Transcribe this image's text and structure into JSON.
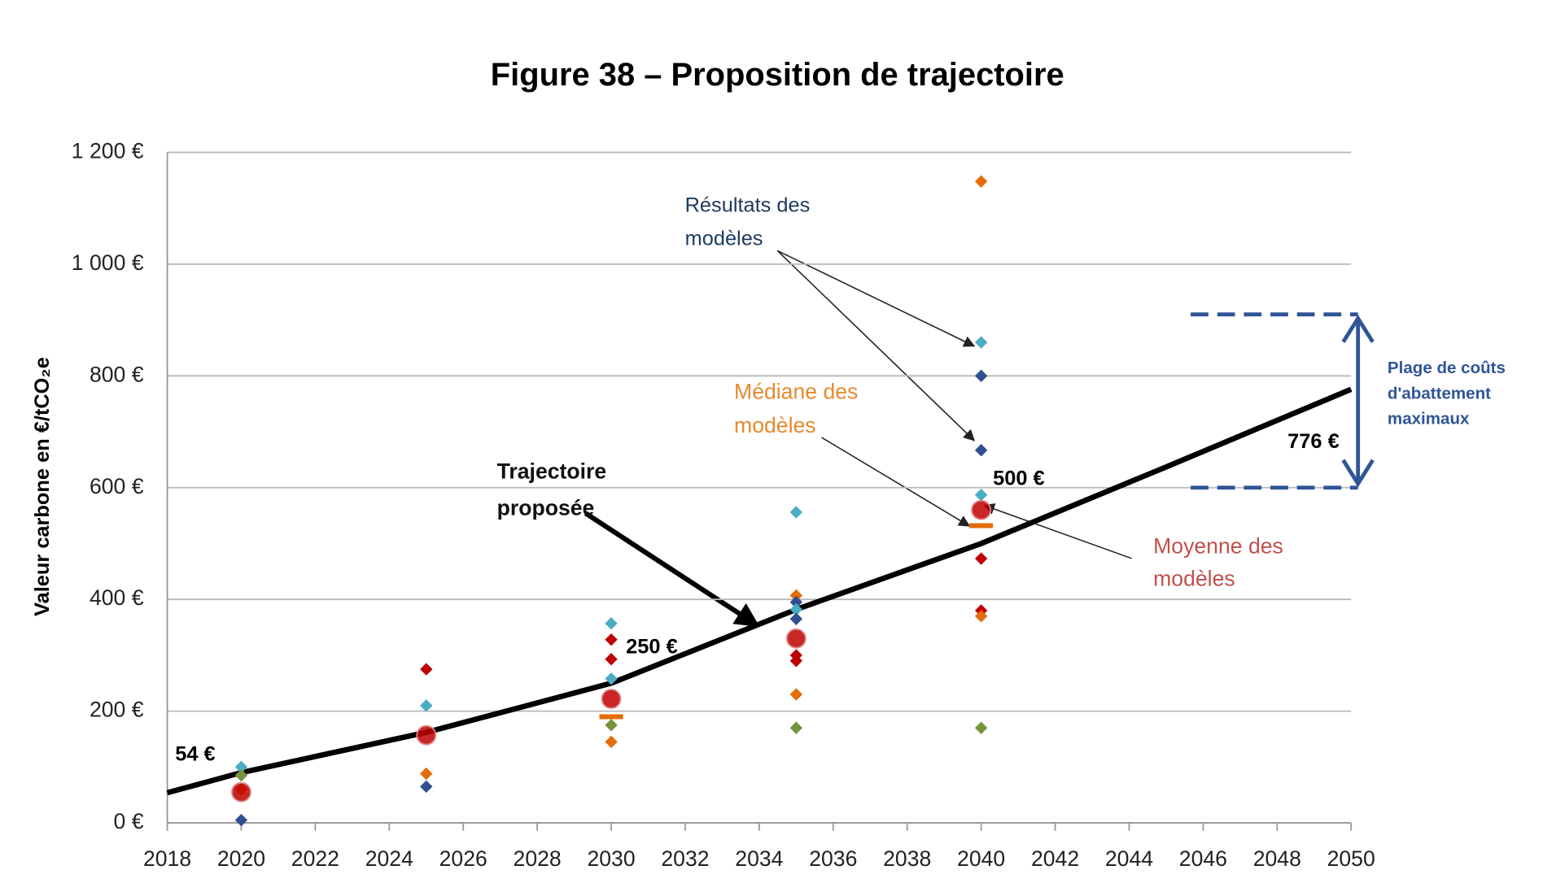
{
  "chart_data": {
    "type": "line",
    "title": "Figure 38 – Proposition de trajectoire",
    "y_label": "Valeur carbone en €/tCO₂e",
    "xlim": [
      2018,
      2050
    ],
    "xticks": [
      2018,
      2020,
      2022,
      2024,
      2026,
      2028,
      2030,
      2032,
      2034,
      2036,
      2038,
      2040,
      2042,
      2044,
      2046,
      2048,
      2050
    ],
    "ylim": [
      0,
      1200
    ],
    "yticks": [
      {
        "value": 0,
        "label": "0 €"
      },
      {
        "value": 200,
        "label": "200 €"
      },
      {
        "value": 400,
        "label": "400 €"
      },
      {
        "value": 600,
        "label": "600 €"
      },
      {
        "value": 800,
        "label": "800 €"
      },
      {
        "value": 1000,
        "label": "1 000 €"
      },
      {
        "value": 1200,
        "label": "1 200 €"
      }
    ],
    "grid": true,
    "series": [
      {
        "name": [
          "Trajectoire",
          "proposée"
        ],
        "type": "line",
        "color": "#000000",
        "x": [
          2018,
          2020,
          2025,
          2030,
          2035,
          2040,
          2045,
          2050
        ],
        "values": [
          54,
          90,
          162,
          250,
          382,
          500,
          637,
          776
        ],
        "value_labels": [
          "54 €",
          null,
          null,
          "250 €",
          null,
          "500 €",
          null,
          "776 €"
        ]
      },
      {
        "name": [
          "Résultats des",
          "modèles"
        ],
        "type": "scatter",
        "x": [
          2020,
          2020,
          2020,
          2020,
          2025,
          2025,
          2025,
          2025,
          2030,
          2030,
          2030,
          2030,
          2030,
          2030,
          2035,
          2035,
          2035,
          2035,
          2035,
          2035,
          2035,
          2035,
          2035,
          2040,
          2040,
          2040,
          2040,
          2040,
          2040,
          2040,
          2040,
          2040
        ],
        "values": [
          5,
          100,
          85,
          60,
          275,
          210,
          88,
          65,
          357,
          328,
          293,
          258,
          175,
          145,
          556,
          407,
          395,
          382,
          365,
          300,
          290,
          230,
          170,
          1148,
          860,
          800,
          667,
          587,
          473,
          380,
          370,
          170
        ],
        "colors": [
          "#2f4f8f",
          "#4bacc6",
          "#77933c",
          "#e46c0a",
          "#c00000",
          "#4bacc6",
          "#e46c0a",
          "#2f4f8f",
          "#4bacc6",
          "#c00000",
          "#c00000",
          "#4bacc6",
          "#77933c",
          "#e46c0a",
          "#4bacc6",
          "#e46c0a",
          "#2f4f8f",
          "#4bacc6",
          "#2f4f8f",
          "#c00000",
          "#c00000",
          "#e46c0a",
          "#77933c",
          "#e46c0a",
          "#4bacc6",
          "#2f4f8f",
          "#2f4f8f",
          "#4bacc6",
          "#c00000",
          "#c00000",
          "#e46c0a",
          "#77933c"
        ]
      },
      {
        "name": [
          "Médiane des",
          "modèles"
        ],
        "type": "median",
        "color": "#e46c0a",
        "x": [
          2030,
          2040
        ],
        "values": [
          190,
          532
        ]
      },
      {
        "name": [
          "Moyenne des",
          "modèles"
        ],
        "type": "mean",
        "color": "#c00000",
        "x": [
          2020,
          2025,
          2030,
          2035,
          2040
        ],
        "values": [
          55,
          157,
          222,
          330,
          560
        ]
      },
      {
        "name": [
          "Plage de coûts",
          "d'abattement",
          "maximaux"
        ],
        "type": "range",
        "color": "#2f5597",
        "values": [
          600,
          910
        ]
      }
    ]
  }
}
